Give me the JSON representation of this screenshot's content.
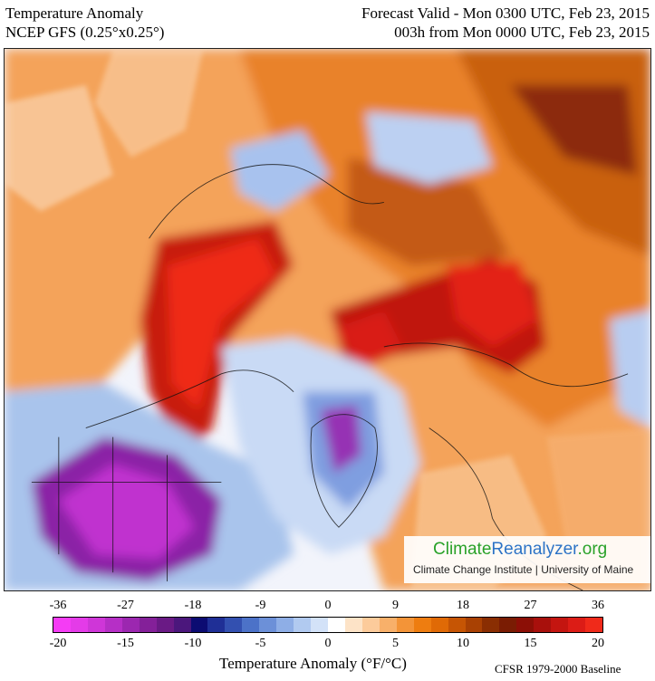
{
  "header": {
    "title": "Temperature Anomaly",
    "model": "NCEP GFS (0.25°x0.25°)",
    "valid": "Forecast Valid - Mon 0300 UTC, Feb 23, 2015",
    "lead": "003h from Mon 0000 UTC, Feb 23, 2015"
  },
  "logo": {
    "part1": "Climate",
    "part2": "Reanalyzer",
    "part3": ".org",
    "subtitle": "Climate Change Institute | University of Maine"
  },
  "colorbar": {
    "label": "Temperature Anomaly (°F/°C)",
    "baseline": "CFSR 1979-2000 Baseline",
    "ticks_f": [
      "-36",
      "-27",
      "-18",
      "-9",
      "0",
      "9",
      "18",
      "27",
      "36"
    ],
    "ticks_c": [
      "-20",
      "-15",
      "-10",
      "-5",
      "0",
      "5",
      "10",
      "15",
      "20"
    ],
    "colors": [
      "#f53cf5",
      "#e43be8",
      "#cf36d8",
      "#b62fc6",
      "#9c27b0",
      "#842099",
      "#6a1a85",
      "#4b177c",
      "#0c0c72",
      "#1f2f96",
      "#3350b0",
      "#4c72c8",
      "#6c90d8",
      "#8eaee6",
      "#b1caf0",
      "#d3e2f8",
      "#ffffff",
      "#fde3c7",
      "#fccb9b",
      "#f8b06a",
      "#f39438",
      "#ee7d10",
      "#e06a06",
      "#c65504",
      "#a94103",
      "#8a2e02",
      "#7a1c03",
      "#8c0f06",
      "#a8100c",
      "#c41510",
      "#dc1c16",
      "#f02a1a"
    ]
  },
  "map": {
    "description_regions": []
  }
}
